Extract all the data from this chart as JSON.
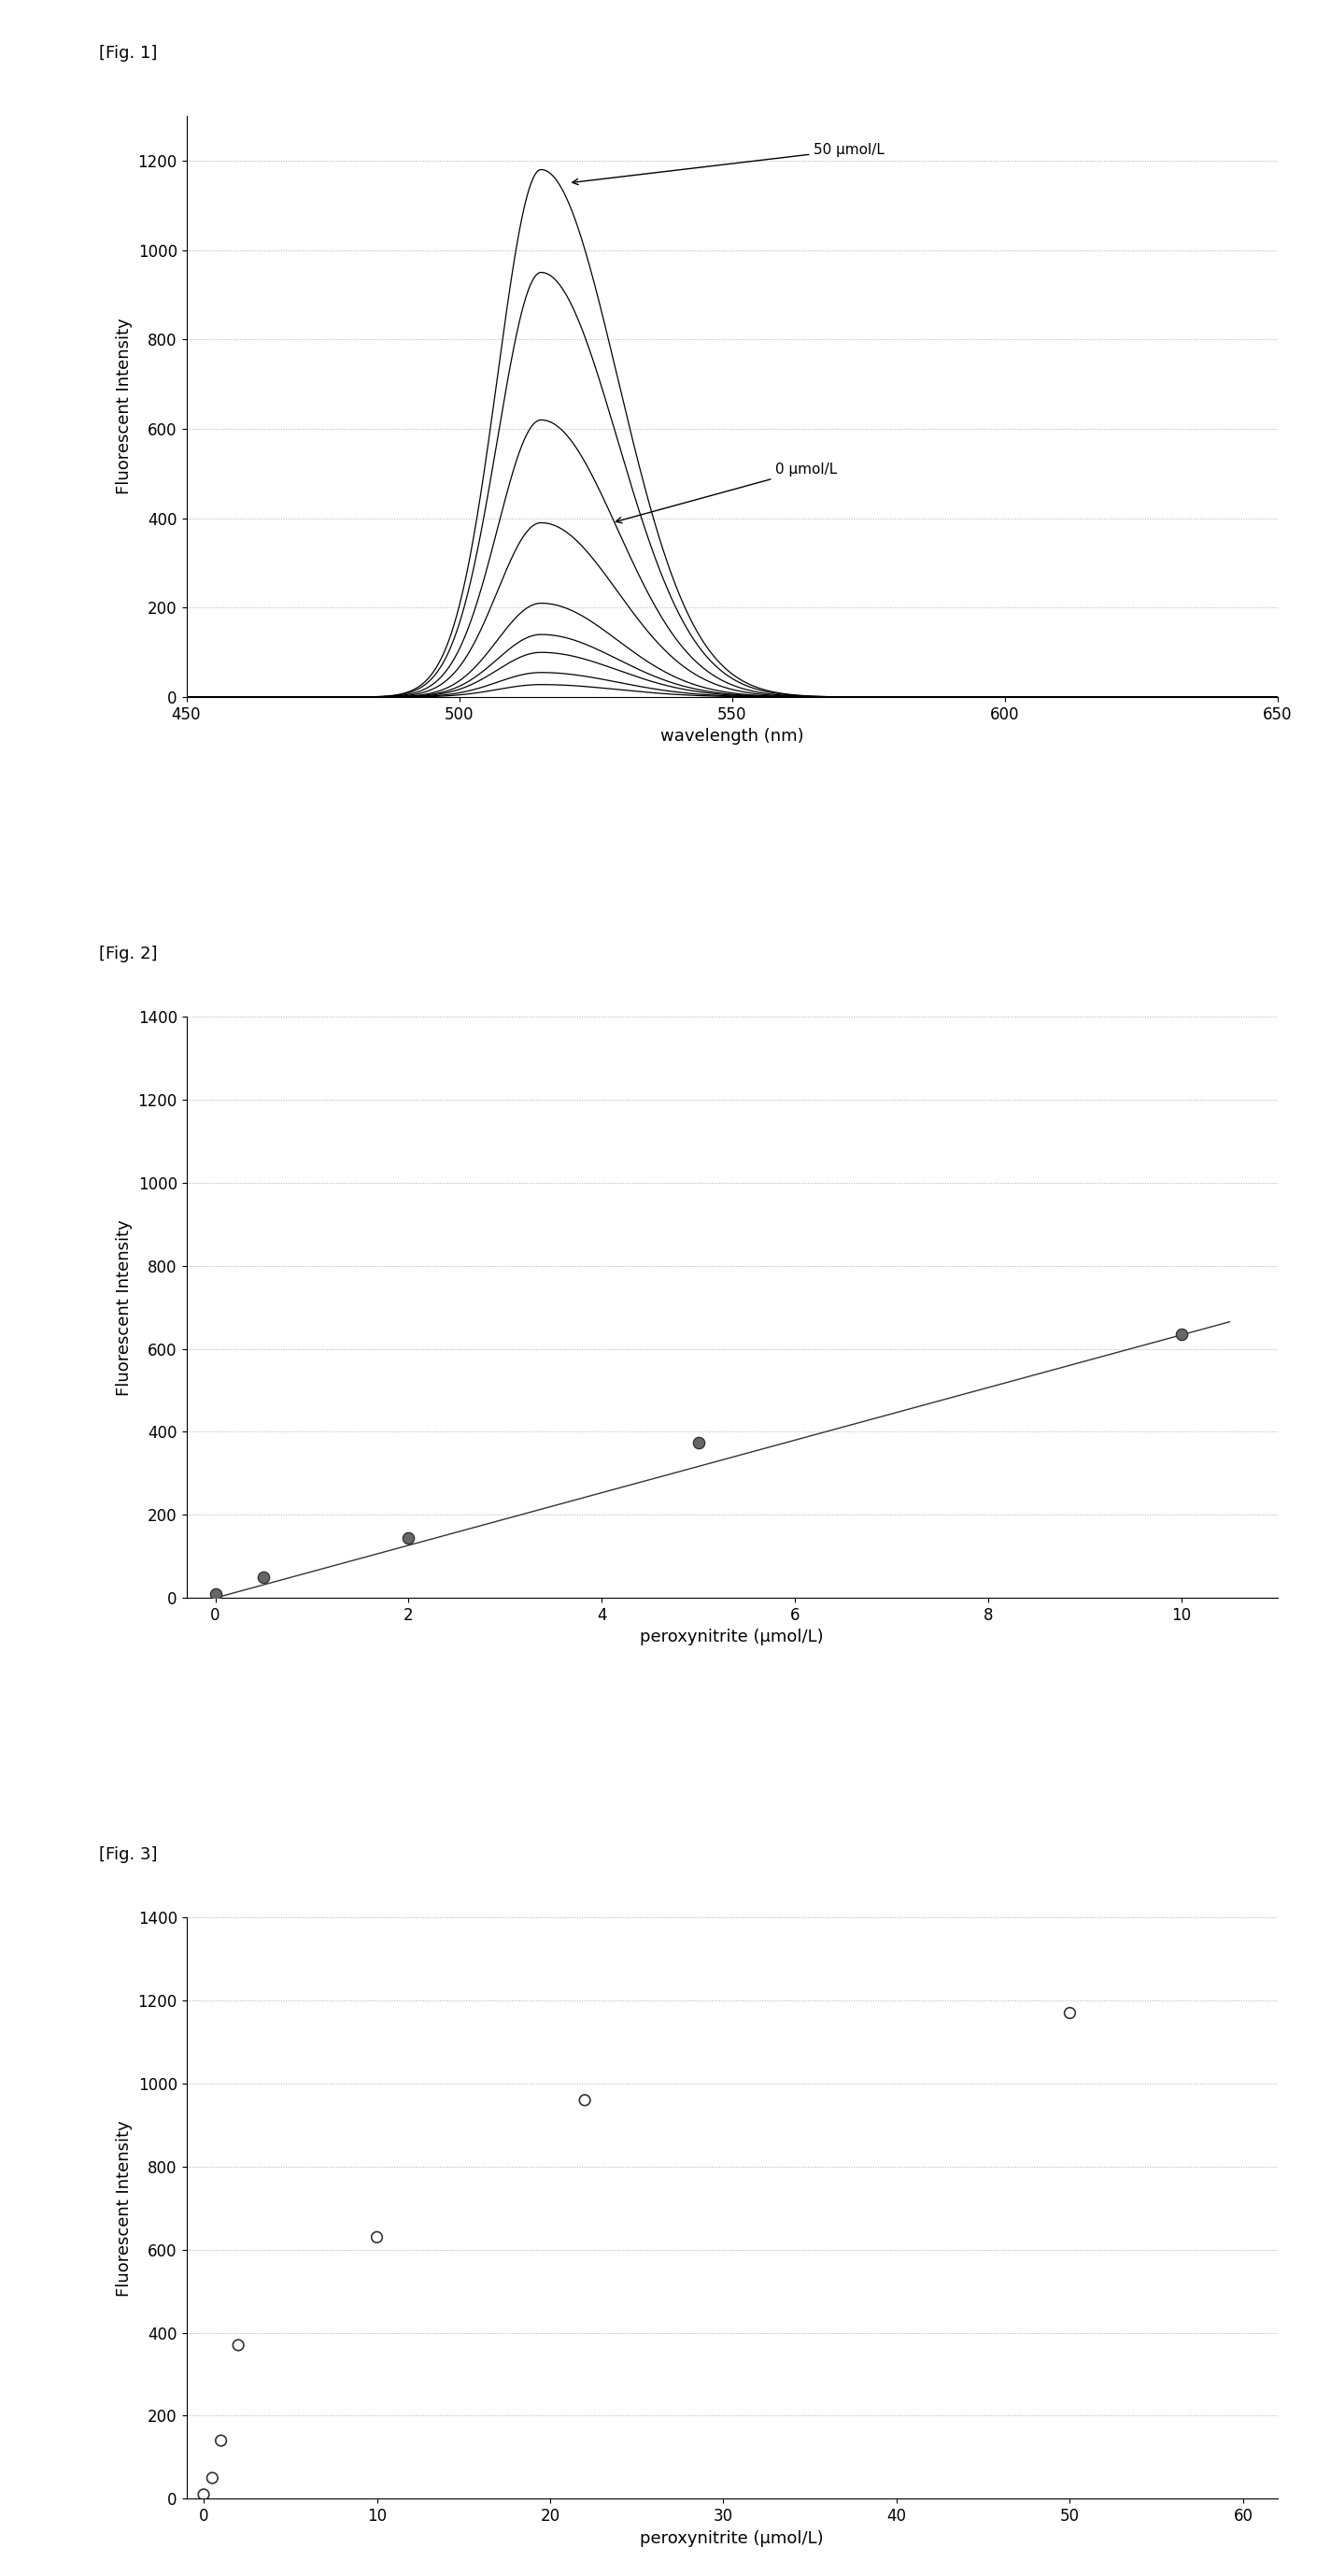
{
  "fig1": {
    "label": "[Fig. 1]",
    "xlabel": "wavelength (nm)",
    "ylabel": "Fluorescent Intensity",
    "xlim": [
      450,
      650
    ],
    "ylim": [
      0,
      1300
    ],
    "yticks": [
      0,
      200,
      400,
      600,
      800,
      1000,
      1200
    ],
    "xticks": [
      450,
      500,
      550,
      600,
      650
    ],
    "annotation_high": "50 μmol/L",
    "annotation_low": "0 μmol/L",
    "peak_wavelength": 515,
    "curves": [
      {
        "peak": 28,
        "sigma_l": 8,
        "sigma_r": 14
      },
      {
        "peak": 55,
        "sigma_l": 8,
        "sigma_r": 14
      },
      {
        "peak": 100,
        "sigma_l": 8,
        "sigma_r": 14
      },
      {
        "peak": 140,
        "sigma_l": 8,
        "sigma_r": 14
      },
      {
        "peak": 210,
        "sigma_l": 8,
        "sigma_r": 14
      },
      {
        "peak": 390,
        "sigma_l": 8,
        "sigma_r": 14
      },
      {
        "peak": 620,
        "sigma_l": 8,
        "sigma_r": 14
      },
      {
        "peak": 950,
        "sigma_l": 8,
        "sigma_r": 14
      },
      {
        "peak": 1180,
        "sigma_l": 8,
        "sigma_r": 14
      }
    ]
  },
  "fig2": {
    "label": "[Fig. 2]",
    "xlabel": "peroxynitrite (μmol/L)",
    "ylabel": "Fluorescent Intensity",
    "xlim": [
      -0.3,
      11
    ],
    "ylim": [
      0,
      1400
    ],
    "yticks": [
      0,
      200,
      400,
      600,
      800,
      1000,
      1200,
      1400
    ],
    "xticks": [
      0,
      2,
      4,
      6,
      8,
      10
    ],
    "scatter_x": [
      0.0,
      0.5,
      2.0,
      5.0,
      10.0
    ],
    "scatter_y": [
      10,
      50,
      145,
      375,
      635
    ],
    "fit_x": [
      0,
      10.5
    ],
    "fit_y": [
      0,
      665
    ]
  },
  "fig3": {
    "label": "[Fig. 3]",
    "xlabel": "peroxynitrite (μmol/L)",
    "ylabel": "Fluorescent Intensity",
    "xlim": [
      -1,
      62
    ],
    "ylim": [
      0,
      1400
    ],
    "yticks": [
      0,
      200,
      400,
      600,
      800,
      1000,
      1200,
      1400
    ],
    "xticks": [
      0,
      10,
      20,
      30,
      40,
      50,
      60
    ],
    "scatter_x": [
      0.0,
      0.5,
      1.5,
      3.0,
      5.0,
      10.0,
      22.0,
      50.0
    ],
    "scatter_y": [
      10,
      30,
      140,
      370,
      130,
      630,
      960,
      1170
    ]
  },
  "background_color": "#ffffff",
  "grid_color": "#999999",
  "line_color": "#000000",
  "label_fontsize": 13,
  "tick_fontsize": 12,
  "fig_label_fontsize": 13
}
